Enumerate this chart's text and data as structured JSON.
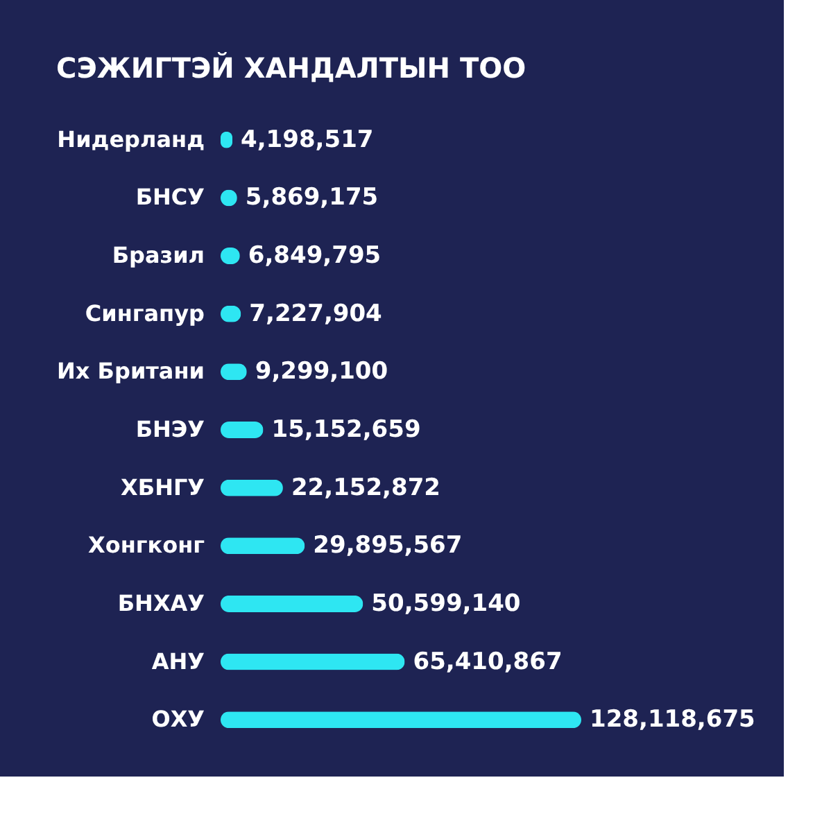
{
  "chart_data": {
    "type": "bar",
    "orientation": "horizontal",
    "title": "СЭЖИГТЭЙ ХАНДАЛТЫН ТОО",
    "categories": [
      "Нидерланд",
      "БНСУ",
      "Бразил",
      "Сингапур",
      "Их Британи",
      "БНЭУ",
      "ХБНГУ",
      "Хонгконг",
      "БНХАУ",
      "АНУ",
      "ОХУ"
    ],
    "values": [
      4198517,
      5869175,
      6849795,
      7227904,
      9299100,
      15152659,
      22152872,
      29895567,
      50599140,
      65410867,
      128118675
    ],
    "value_labels": [
      "4,198,517",
      "5,869,175",
      "6,849,795",
      "7,227,904",
      "9,299,100",
      "15,152,659",
      "22,152,872",
      "29,895,567",
      "50,599,140",
      "65,410,867",
      "128,118,675"
    ],
    "color": "#2ee6f2"
  }
}
